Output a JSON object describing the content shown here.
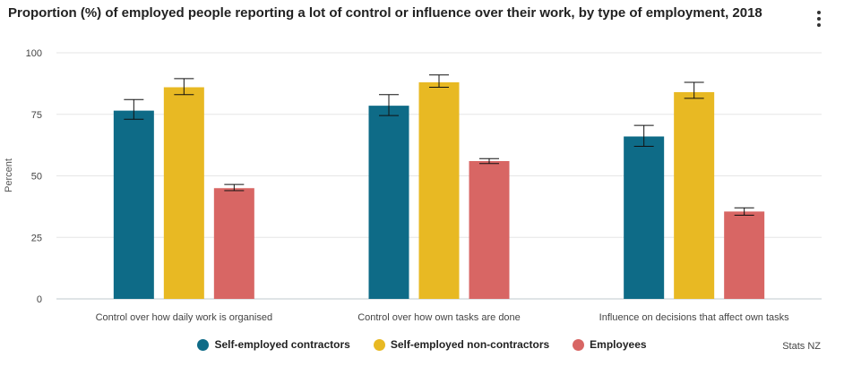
{
  "chart_data": {
    "type": "bar",
    "title": "Proportion (%) of employed people reporting a lot of control or influence over their work, by type of employment, 2018",
    "xlabel": "",
    "ylabel": "Percent",
    "ylim": [
      0,
      100
    ],
    "yticks": [
      0,
      25,
      50,
      75,
      100
    ],
    "categories": [
      "Control over how daily work is organised",
      "Control over how own tasks are done",
      "Influence on decisions that affect own tasks"
    ],
    "series": [
      {
        "name": "Self-employed contractors",
        "color": "#0e6b87",
        "values": [
          76.5,
          78.5,
          66
        ],
        "error_low": [
          73,
          74.5,
          62
        ],
        "error_high": [
          81,
          83,
          70.5
        ]
      },
      {
        "name": "Self-employed non-contractors",
        "color": "#e8b923",
        "values": [
          86,
          88,
          84
        ],
        "error_low": [
          83,
          86,
          81.5
        ],
        "error_high": [
          89.5,
          91,
          88
        ]
      },
      {
        "name": "Employees",
        "color": "#d86664",
        "values": [
          45,
          56,
          35.5
        ],
        "error_low": [
          44,
          55,
          34
        ],
        "error_high": [
          46.5,
          57,
          37
        ]
      }
    ],
    "legend_position": "bottom-center",
    "grid": true
  },
  "source": "Stats NZ"
}
